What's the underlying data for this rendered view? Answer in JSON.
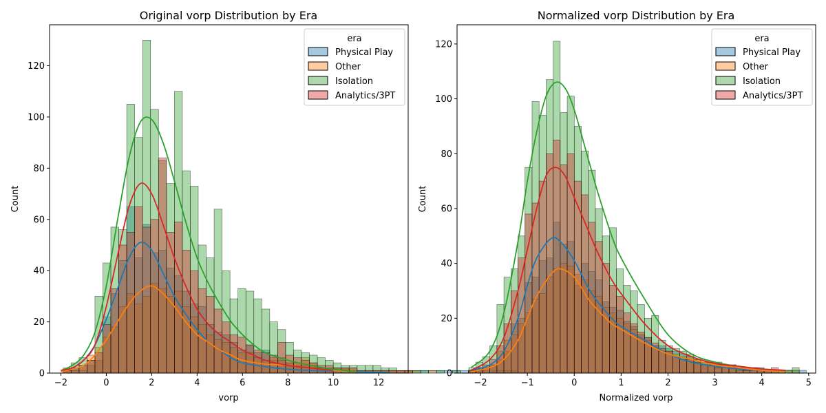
{
  "figure": {
    "background": "#ffffff"
  },
  "legend": {
    "title": "era",
    "placement": "top-right",
    "entries": [
      "Physical Play",
      "Other",
      "Isolation",
      "Analytics/3PT"
    ]
  },
  "chart_data": [
    {
      "type": "histogram",
      "title": "Original vorp Distribution by Era",
      "xlabel": "vorp",
      "ylabel": "Count",
      "xlim": [
        -2.5,
        13.3
      ],
      "ylim": [
        0,
        136
      ],
      "xticks": [
        -2,
        0,
        2,
        4,
        6,
        8,
        10,
        12
      ],
      "yticks": [
        0,
        20,
        40,
        60,
        80,
        100,
        120
      ],
      "bin_width": 0.35,
      "bins_start": -1.9,
      "series": [
        {
          "name": "Physical Play",
          "color": "#1f77b4",
          "counts": [
            1,
            2,
            1,
            3,
            5,
            22,
            31,
            44,
            65,
            45,
            58,
            47,
            48,
            41,
            38,
            32,
            27,
            26,
            19,
            16,
            15,
            12,
            9,
            11,
            8,
            9,
            5,
            6,
            4,
            3,
            3,
            3,
            2,
            2,
            2,
            2,
            1,
            1,
            1,
            1,
            1,
            1,
            1,
            1,
            1,
            1,
            1,
            1,
            1,
            1,
            1,
            1,
            1,
            0,
            1,
            1,
            1
          ]
        },
        {
          "name": "Other",
          "color": "#ff7f0e",
          "counts": [
            1,
            1,
            3,
            7,
            10,
            14,
            18,
            26,
            31,
            27,
            30,
            35,
            33,
            30,
            32,
            26,
            22,
            19,
            15,
            13,
            12,
            10,
            8,
            8,
            6,
            5,
            6,
            5,
            4,
            4,
            6,
            4,
            2,
            2,
            2,
            2,
            2,
            1,
            1,
            1,
            1,
            1,
            1,
            1,
            1,
            0,
            1
          ]
        },
        {
          "name": "Isolation",
          "color": "#2ca02c",
          "counts": [
            2,
            4,
            6,
            5,
            30,
            43,
            57,
            56,
            105,
            92,
            130,
            103,
            83,
            74,
            110,
            79,
            73,
            50,
            45,
            64,
            40,
            29,
            33,
            32,
            29,
            25,
            20,
            17,
            12,
            9,
            8,
            7,
            6,
            5,
            4,
            3,
            3,
            3,
            3,
            3,
            2,
            2,
            1,
            1,
            1,
            1,
            0,
            1,
            0,
            1
          ]
        },
        {
          "name": "Analytics/3PT",
          "color": "#d62728",
          "counts": [
            1,
            2,
            3,
            5,
            8,
            19,
            33,
            50,
            55,
            65,
            57,
            60,
            84,
            55,
            59,
            48,
            40,
            33,
            30,
            25,
            20,
            15,
            14,
            11,
            9,
            8,
            7,
            12,
            7,
            6,
            5,
            4,
            3,
            3,
            2,
            2,
            2,
            1,
            1,
            1,
            1,
            1,
            1,
            1
          ]
        }
      ],
      "kde": [
        {
          "name": "Physical Play",
          "x": [
            -2.0,
            -1.5,
            -1.0,
            -0.5,
            0.0,
            0.5,
            1.0,
            1.5,
            2.0,
            2.5,
            3.0,
            3.5,
            4.0,
            4.5,
            5.0,
            5.5,
            6.0,
            7.0,
            8.0,
            9.0,
            10.0,
            11.0,
            12.0,
            12.5
          ],
          "y": [
            1,
            2,
            5,
            11,
            21,
            33,
            45,
            51,
            48,
            39,
            30,
            23,
            17,
            12,
            9,
            6,
            4,
            2.5,
            1.5,
            1,
            0.8,
            0.5,
            0.3,
            0.2
          ]
        },
        {
          "name": "Other",
          "x": [
            -2.0,
            -1.5,
            -1.0,
            -0.5,
            0.0,
            0.5,
            1.0,
            1.5,
            2.0,
            2.5,
            3.0,
            3.5,
            4.0,
            4.5,
            5.0,
            5.5,
            6.0,
            7.0,
            8.0,
            9.0,
            10.0,
            11.0
          ],
          "y": [
            0.5,
            1.5,
            3,
            7,
            13,
            20,
            27,
            32,
            34,
            31,
            26,
            20,
            15,
            12,
            9,
            7,
            5,
            3.5,
            3,
            2,
            1,
            0.5
          ]
        },
        {
          "name": "Isolation",
          "x": [
            -2.0,
            -1.5,
            -1.0,
            -0.5,
            0.0,
            0.5,
            1.0,
            1.5,
            2.0,
            2.5,
            3.0,
            3.5,
            4.0,
            4.5,
            5.0,
            5.5,
            6.0,
            6.5,
            7.0,
            8.0,
            9.0,
            10.0,
            11.0
          ],
          "y": [
            1,
            3,
            7,
            16,
            34,
            60,
            84,
            98,
            99,
            90,
            75,
            59,
            45,
            35,
            27,
            20,
            15,
            11,
            8,
            5,
            3,
            1.5,
            0.5
          ]
        },
        {
          "name": "Analytics/3PT",
          "x": [
            -2.0,
            -1.5,
            -1.0,
            -0.5,
            0.0,
            0.5,
            1.0,
            1.5,
            2.0,
            2.5,
            3.0,
            3.5,
            4.0,
            4.5,
            5.0,
            5.5,
            6.0,
            6.5,
            7.0,
            8.0,
            9.0,
            10.0
          ],
          "y": [
            1,
            2,
            5,
            11,
            26,
            46,
            65,
            74,
            70,
            58,
            45,
            34,
            25,
            19,
            15,
            12,
            9,
            7,
            5,
            3,
            2,
            1
          ]
        }
      ]
    },
    {
      "type": "histogram",
      "title": "Normalized vorp Distribution by Era",
      "xlabel": "Normalized vorp",
      "ylabel": "Count",
      "xlim": [
        -2.5,
        5.15
      ],
      "ylim": [
        0,
        127
      ],
      "xticks": [
        -2,
        -1,
        0,
        1,
        2,
        3,
        4,
        5
      ],
      "yticks": [
        0,
        20,
        40,
        60,
        80,
        100,
        120
      ],
      "bin_width": 0.15,
      "bins_start": -2.25,
      "series": [
        {
          "name": "Physical Play",
          "color": "#1f77b4",
          "counts": [
            1,
            2,
            1,
            3,
            5,
            8,
            18,
            20,
            33,
            35,
            41,
            42,
            55,
            47,
            48,
            32,
            40,
            37,
            34,
            26,
            24,
            23,
            19,
            17,
            14,
            13,
            10,
            10,
            9,
            8,
            7,
            6,
            5,
            4,
            4,
            3,
            3,
            3,
            2,
            2,
            2,
            2,
            1,
            1,
            1,
            1,
            1,
            1
          ]
        },
        {
          "name": "Other",
          "color": "#ff7f0e",
          "counts": [
            1,
            1,
            2,
            3,
            8,
            12,
            14,
            18,
            22,
            27,
            29,
            35,
            38,
            40,
            39,
            36,
            34,
            30,
            28,
            24,
            22,
            20,
            18,
            16,
            14,
            12,
            10,
            8,
            8,
            7,
            6,
            6,
            5,
            4,
            4,
            3,
            3,
            3,
            2,
            2,
            2,
            1,
            1,
            1,
            1,
            1,
            1
          ]
        },
        {
          "name": "Isolation",
          "color": "#2ca02c",
          "counts": [
            2,
            4,
            6,
            10,
            25,
            35,
            38,
            50,
            75,
            99,
            94,
            107,
            121,
            95,
            101,
            90,
            81,
            74,
            60,
            50,
            53,
            38,
            32,
            30,
            25,
            20,
            21,
            12,
            10,
            9,
            8,
            7,
            5,
            4,
            3,
            4,
            2,
            2,
            2,
            1,
            1,
            1,
            1,
            1,
            1,
            1,
            2
          ]
        },
        {
          "name": "Analytics/3PT",
          "color": "#d62728",
          "counts": [
            1,
            2,
            3,
            5,
            10,
            18,
            30,
            42,
            58,
            62,
            70,
            80,
            85,
            76,
            80,
            70,
            65,
            55,
            48,
            40,
            32,
            28,
            22,
            18,
            15,
            13,
            11,
            9,
            8,
            6,
            5,
            5,
            4,
            3,
            3,
            2,
            2,
            2,
            1,
            1,
            1,
            1,
            1,
            2
          ]
        }
      ],
      "kde": [
        {
          "name": "Physical Play",
          "x": [
            -2.2,
            -1.8,
            -1.5,
            -1.2,
            -1.0,
            -0.8,
            -0.5,
            -0.3,
            0.0,
            0.3,
            0.5,
            0.8,
            1.0,
            1.5,
            2.0,
            2.5,
            3.0,
            3.5,
            4.0,
            4.5
          ],
          "y": [
            1,
            3,
            8,
            20,
            32,
            42,
            49,
            48,
            41,
            31,
            26,
            20,
            17,
            12,
            7,
            4,
            2.5,
            1.5,
            1,
            0.5
          ]
        },
        {
          "name": "Other",
          "x": [
            -2.2,
            -1.8,
            -1.5,
            -1.2,
            -1.0,
            -0.8,
            -0.5,
            -0.3,
            0.0,
            0.3,
            0.5,
            0.8,
            1.0,
            1.5,
            2.0,
            2.5,
            3.0,
            3.5,
            4.0,
            4.5
          ],
          "y": [
            0.5,
            2,
            5,
            12,
            20,
            28,
            36,
            38,
            35,
            27,
            23,
            18,
            16,
            11,
            7,
            5,
            3,
            2,
            1,
            0.5
          ]
        },
        {
          "name": "Isolation",
          "x": [
            -2.2,
            -1.8,
            -1.5,
            -1.2,
            -1.0,
            -0.8,
            -0.6,
            -0.4,
            -0.2,
            0.0,
            0.3,
            0.5,
            0.8,
            1.0,
            1.5,
            2.0,
            2.5,
            3.0,
            3.5,
            4.0,
            4.5
          ],
          "y": [
            2,
            8,
            22,
            48,
            70,
            88,
            101,
            106,
            104,
            96,
            78,
            66,
            50,
            42,
            27,
            14,
            7,
            4,
            2.5,
            1.5,
            1
          ]
        },
        {
          "name": "Analytics/3PT",
          "x": [
            -2.2,
            -1.8,
            -1.5,
            -1.2,
            -1.0,
            -0.8,
            -0.6,
            -0.4,
            -0.2,
            0.0,
            0.3,
            0.5,
            0.8,
            1.0,
            1.5,
            2.0,
            2.5,
            3.0,
            3.5,
            4.0,
            4.5
          ],
          "y": [
            1,
            5,
            13,
            30,
            45,
            60,
            72,
            75,
            72,
            64,
            52,
            44,
            34,
            29,
            18,
            10,
            6,
            3.5,
            2.5,
            1.5,
            1
          ]
        }
      ]
    }
  ]
}
